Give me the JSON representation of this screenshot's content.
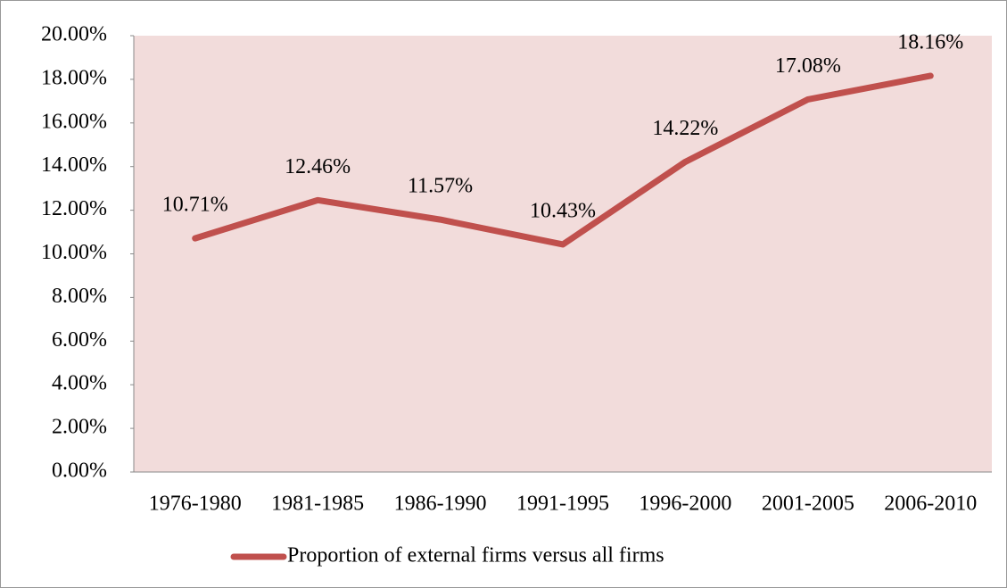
{
  "chart_data": {
    "type": "line",
    "categories": [
      "1976-1980",
      "1981-1985",
      "1986-1990",
      "1991-1995",
      "1996-2000",
      "2001-2005",
      "2006-2010"
    ],
    "series": [
      {
        "name": "Proportion of external firms versus all firms",
        "color": "#c0504d",
        "values": [
          10.71,
          12.46,
          11.57,
          10.43,
          14.22,
          17.08,
          18.16
        ],
        "value_labels": [
          "10.71%",
          "12.46%",
          "11.57%",
          "10.43%",
          "14.22%",
          "17.08%",
          "18.16%"
        ]
      }
    ],
    "ylim": [
      0,
      20
    ],
    "yticks": [
      {
        "value": 0,
        "label": "0.00%"
      },
      {
        "value": 2,
        "label": "2.00%"
      },
      {
        "value": 4,
        "label": "4.00%"
      },
      {
        "value": 6,
        "label": "6.00%"
      },
      {
        "value": 8,
        "label": "8.00%"
      },
      {
        "value": 10,
        "label": "10.00%"
      },
      {
        "value": 12,
        "label": "12.00%"
      },
      {
        "value": 14,
        "label": "14.00%"
      },
      {
        "value": 16,
        "label": "16.00%"
      },
      {
        "value": 18,
        "label": "18.00%"
      },
      {
        "value": 20,
        "label": "20.00%"
      }
    ],
    "legend": "bottom"
  }
}
